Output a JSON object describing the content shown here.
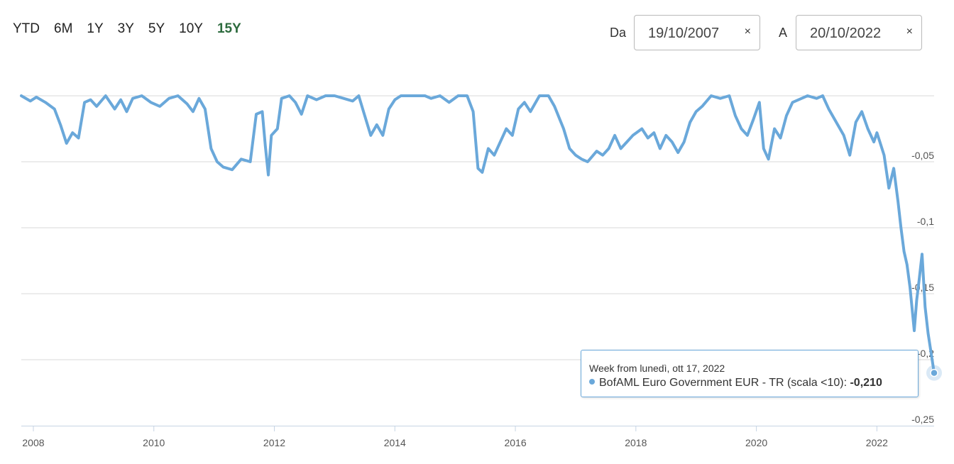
{
  "range_selector": {
    "buttons": [
      "YTD",
      "6M",
      "1Y",
      "3Y",
      "5Y",
      "10Y",
      "15Y"
    ],
    "active": "15Y"
  },
  "date_range": {
    "from_label": "Da",
    "from_value": "19/10/2007",
    "to_label": "A",
    "to_value": "20/10/2022",
    "clear_icon": "×"
  },
  "colors": {
    "series": "#6aa8da",
    "grid": "#d8d8d8",
    "active_range": "#2d6b3e"
  },
  "tooltip": {
    "title": "Week from lunedì, ott 17, 2022",
    "series_label": "BofAML Euro Government EUR - TR (scala <10):",
    "value": "-0,210"
  },
  "chart_data": {
    "type": "line",
    "series": [
      {
        "name": "BofAML Euro Government EUR - TR (scala <10)",
        "points": [
          [
            2007.8,
            0.0
          ],
          [
            2007.95,
            -0.004
          ],
          [
            2008.05,
            -0.001
          ],
          [
            2008.2,
            -0.005
          ],
          [
            2008.35,
            -0.01
          ],
          [
            2008.45,
            -0.022
          ],
          [
            2008.55,
            -0.036
          ],
          [
            2008.65,
            -0.028
          ],
          [
            2008.75,
            -0.032
          ],
          [
            2008.85,
            -0.005
          ],
          [
            2008.95,
            -0.003
          ],
          [
            2009.05,
            -0.008
          ],
          [
            2009.2,
            0.0
          ],
          [
            2009.35,
            -0.01
          ],
          [
            2009.45,
            -0.003
          ],
          [
            2009.55,
            -0.012
          ],
          [
            2009.65,
            -0.002
          ],
          [
            2009.8,
            0.0
          ],
          [
            2009.95,
            -0.005
          ],
          [
            2010.1,
            -0.008
          ],
          [
            2010.25,
            -0.002
          ],
          [
            2010.4,
            0.0
          ],
          [
            2010.55,
            -0.006
          ],
          [
            2010.65,
            -0.012
          ],
          [
            2010.75,
            -0.002
          ],
          [
            2010.85,
            -0.01
          ],
          [
            2010.95,
            -0.04
          ],
          [
            2011.05,
            -0.05
          ],
          [
            2011.15,
            -0.054
          ],
          [
            2011.3,
            -0.056
          ],
          [
            2011.45,
            -0.048
          ],
          [
            2011.6,
            -0.05
          ],
          [
            2011.7,
            -0.014
          ],
          [
            2011.8,
            -0.012
          ],
          [
            2011.85,
            -0.038
          ],
          [
            2011.9,
            -0.06
          ],
          [
            2011.95,
            -0.03
          ],
          [
            2012.05,
            -0.025
          ],
          [
            2012.12,
            -0.002
          ],
          [
            2012.25,
            0.0
          ],
          [
            2012.35,
            -0.005
          ],
          [
            2012.45,
            -0.014
          ],
          [
            2012.55,
            0.0
          ],
          [
            2012.7,
            -0.003
          ],
          [
            2012.85,
            0.0
          ],
          [
            2013.0,
            0.0
          ],
          [
            2013.15,
            -0.002
          ],
          [
            2013.3,
            -0.004
          ],
          [
            2013.4,
            0.0
          ],
          [
            2013.5,
            -0.015
          ],
          [
            2013.6,
            -0.03
          ],
          [
            2013.7,
            -0.022
          ],
          [
            2013.8,
            -0.03
          ],
          [
            2013.9,
            -0.01
          ],
          [
            2014.0,
            -0.003
          ],
          [
            2014.1,
            0.0
          ],
          [
            2014.3,
            0.0
          ],
          [
            2014.5,
            0.0
          ],
          [
            2014.6,
            -0.002
          ],
          [
            2014.75,
            0.0
          ],
          [
            2014.9,
            -0.005
          ],
          [
            2015.05,
            0.0
          ],
          [
            2015.2,
            0.0
          ],
          [
            2015.3,
            -0.012
          ],
          [
            2015.38,
            -0.055
          ],
          [
            2015.45,
            -0.058
          ],
          [
            2015.55,
            -0.04
          ],
          [
            2015.65,
            -0.045
          ],
          [
            2015.75,
            -0.035
          ],
          [
            2015.85,
            -0.025
          ],
          [
            2015.95,
            -0.03
          ],
          [
            2016.05,
            -0.01
          ],
          [
            2016.15,
            -0.005
          ],
          [
            2016.25,
            -0.012
          ],
          [
            2016.4,
            0.0
          ],
          [
            2016.55,
            0.0
          ],
          [
            2016.65,
            -0.008
          ],
          [
            2016.8,
            -0.025
          ],
          [
            2016.9,
            -0.04
          ],
          [
            2017.0,
            -0.045
          ],
          [
            2017.1,
            -0.048
          ],
          [
            2017.2,
            -0.05
          ],
          [
            2017.35,
            -0.042
          ],
          [
            2017.45,
            -0.045
          ],
          [
            2017.55,
            -0.04
          ],
          [
            2017.65,
            -0.03
          ],
          [
            2017.75,
            -0.04
          ],
          [
            2017.85,
            -0.035
          ],
          [
            2017.95,
            -0.03
          ],
          [
            2018.1,
            -0.025
          ],
          [
            2018.2,
            -0.032
          ],
          [
            2018.3,
            -0.028
          ],
          [
            2018.4,
            -0.04
          ],
          [
            2018.5,
            -0.03
          ],
          [
            2018.6,
            -0.035
          ],
          [
            2018.7,
            -0.043
          ],
          [
            2018.8,
            -0.035
          ],
          [
            2018.9,
            -0.02
          ],
          [
            2019.0,
            -0.012
          ],
          [
            2019.1,
            -0.008
          ],
          [
            2019.25,
            0.0
          ],
          [
            2019.4,
            -0.002
          ],
          [
            2019.55,
            0.0
          ],
          [
            2019.65,
            -0.015
          ],
          [
            2019.75,
            -0.025
          ],
          [
            2019.85,
            -0.03
          ],
          [
            2019.95,
            -0.018
          ],
          [
            2020.05,
            -0.005
          ],
          [
            2020.12,
            -0.04
          ],
          [
            2020.2,
            -0.048
          ],
          [
            2020.3,
            -0.025
          ],
          [
            2020.4,
            -0.032
          ],
          [
            2020.5,
            -0.015
          ],
          [
            2020.6,
            -0.005
          ],
          [
            2020.75,
            -0.002
          ],
          [
            2020.85,
            0.0
          ],
          [
            2021.0,
            -0.002
          ],
          [
            2021.1,
            0.0
          ],
          [
            2021.2,
            -0.01
          ],
          [
            2021.35,
            -0.022
          ],
          [
            2021.45,
            -0.03
          ],
          [
            2021.55,
            -0.045
          ],
          [
            2021.65,
            -0.02
          ],
          [
            2021.75,
            -0.012
          ],
          [
            2021.85,
            -0.025
          ],
          [
            2021.95,
            -0.035
          ],
          [
            2022.0,
            -0.028
          ],
          [
            2022.05,
            -0.035
          ],
          [
            2022.12,
            -0.045
          ],
          [
            2022.2,
            -0.07
          ],
          [
            2022.28,
            -0.055
          ],
          [
            2022.35,
            -0.08
          ],
          [
            2022.4,
            -0.1
          ],
          [
            2022.45,
            -0.118
          ],
          [
            2022.5,
            -0.128
          ],
          [
            2022.55,
            -0.145
          ],
          [
            2022.62,
            -0.178
          ],
          [
            2022.66,
            -0.155
          ],
          [
            2022.7,
            -0.14
          ],
          [
            2022.75,
            -0.12
          ],
          [
            2022.8,
            -0.16
          ],
          [
            2022.85,
            -0.18
          ],
          [
            2022.9,
            -0.195
          ],
          [
            2022.95,
            -0.21
          ]
        ]
      }
    ],
    "x_ticks": [
      2008,
      2010,
      2012,
      2014,
      2016,
      2018,
      2020,
      2022
    ],
    "x_tick_labels": [
      "2008",
      "2010",
      "2012",
      "2014",
      "2016",
      "2018",
      "2020",
      "2022"
    ],
    "y_ticks": [
      -0.05,
      -0.1,
      -0.15,
      -0.2,
      -0.25
    ],
    "y_tick_labels": [
      "-0,05",
      "-0,1",
      "-0,15",
      "-0,2",
      "-0,25"
    ],
    "xlim": [
      2007.8,
      2022.95
    ],
    "ylim": [
      -0.25,
      0.0
    ],
    "grid": true,
    "highlighted_point": [
      2022.95,
      -0.21
    ]
  }
}
